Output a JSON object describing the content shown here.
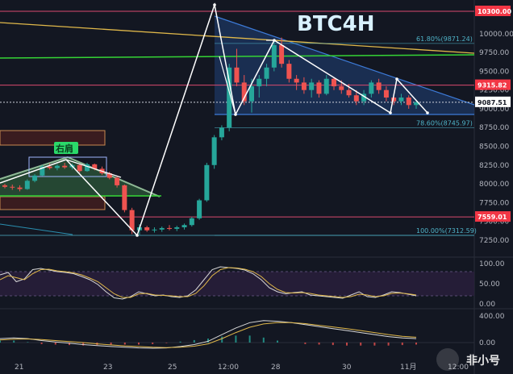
{
  "chart_data": {
    "type": "candlestick",
    "title": "BTC4H",
    "price_axis_ticks": [
      10000,
      9750,
      9500,
      9250,
      9000,
      8750,
      8500,
      8250,
      8000,
      7750,
      7500,
      7250
    ],
    "price_axis_labels": [
      "10000.00",
      "9750.00",
      "9500.00",
      "9250.00",
      "9000.00",
      "8750.00",
      "8500.00",
      "8250.00",
      "8000.00",
      "7750.00",
      "7500.00",
      "7250.00"
    ],
    "ylim": [
      7100,
      10330
    ],
    "x_tick_labels": [
      "21",
      "23",
      "25",
      "12:00",
      "28",
      "30",
      "11月",
      "12:00"
    ],
    "price_tags": [
      {
        "value": 10300.0,
        "text": "10300.00",
        "color": "#f23645"
      },
      {
        "value": 9315.82,
        "text": "9315.82",
        "color": "#f23645"
      },
      {
        "value": 9087.51,
        "text": "9087.51",
        "color": "#ffffff"
      },
      {
        "value": 7559.01,
        "text": "7559.01",
        "color": "#f23645"
      }
    ],
    "fib_levels": [
      {
        "text": "61.80%(9871.24)",
        "value": 9871.24
      },
      {
        "text": "78.60%(8745.97)",
        "value": 8745.97
      },
      {
        "text": "100.00%(7312.59)",
        "value": 7312.59
      }
    ],
    "annotation": "右肩",
    "candles": [
      [
        7980,
        8000,
        7940,
        7960
      ],
      [
        7960,
        7990,
        7920,
        7950
      ],
      [
        7950,
        7980,
        7900,
        7930
      ],
      [
        7930,
        8060,
        7920,
        8040
      ],
      [
        8040,
        8130,
        8020,
        8110
      ],
      [
        8110,
        8250,
        8100,
        8230
      ],
      [
        8230,
        8270,
        8190,
        8210
      ],
      [
        8210,
        8260,
        8180,
        8240
      ],
      [
        8240,
        8280,
        8200,
        8220
      ],
      [
        8220,
        8270,
        8190,
        8250
      ],
      [
        8250,
        8260,
        8150,
        8170
      ],
      [
        8170,
        8280,
        8160,
        8260
      ],
      [
        8260,
        8270,
        8180,
        8200
      ],
      [
        8200,
        8230,
        8120,
        8140
      ],
      [
        8140,
        8160,
        8060,
        8080
      ],
      [
        8080,
        8100,
        7950,
        7980
      ],
      [
        7980,
        7990,
        7620,
        7650
      ],
      [
        7650,
        7680,
        7330,
        7380
      ],
      [
        7380,
        7460,
        7320,
        7420
      ],
      [
        7420,
        7440,
        7360,
        7380
      ],
      [
        7380,
        7420,
        7350,
        7390
      ],
      [
        7390,
        7430,
        7360,
        7410
      ],
      [
        7410,
        7450,
        7380,
        7400
      ],
      [
        7400,
        7440,
        7370,
        7420
      ],
      [
        7420,
        7470,
        7390,
        7450
      ],
      [
        7450,
        7560,
        7430,
        7540
      ],
      [
        7540,
        7800,
        7520,
        7780
      ],
      [
        7780,
        8280,
        7760,
        8250
      ],
      [
        8250,
        8650,
        8200,
        8620
      ],
      [
        8620,
        8780,
        8580,
        8750
      ],
      [
        8750,
        9600,
        8700,
        9550
      ],
      [
        9550,
        9800,
        9300,
        9350
      ],
      [
        9350,
        9450,
        9050,
        9100
      ],
      [
        9100,
        9400,
        8950,
        9300
      ],
      [
        9300,
        9450,
        9150,
        9400
      ],
      [
        9400,
        9600,
        9300,
        9550
      ],
      [
        9550,
        9900,
        9500,
        9850
      ],
      [
        9850,
        9950,
        9550,
        9600
      ],
      [
        9600,
        9650,
        9350,
        9400
      ],
      [
        9400,
        9450,
        9250,
        9350
      ],
      [
        9350,
        9420,
        9200,
        9250
      ],
      [
        9250,
        9400,
        9150,
        9350
      ],
      [
        9350,
        9380,
        9150,
        9200
      ],
      [
        9200,
        9450,
        9180,
        9400
      ],
      [
        9400,
        9420,
        9250,
        9300
      ],
      [
        9300,
        9380,
        9200,
        9250
      ],
      [
        9250,
        9330,
        9150,
        9180
      ],
      [
        9180,
        9250,
        9050,
        9100
      ],
      [
        9100,
        9250,
        9050,
        9200
      ],
      [
        9200,
        9380,
        9150,
        9350
      ],
      [
        9350,
        9400,
        9200,
        9250
      ],
      [
        9250,
        9300,
        9100,
        9150
      ],
      [
        9150,
        9200,
        9050,
        9100
      ],
      [
        9100,
        9200,
        9050,
        9150
      ],
      [
        9150,
        9180,
        9000,
        9050
      ],
      [
        9050,
        9120,
        9000,
        9087
      ]
    ],
    "stoch_axis_labels": [
      "100.00",
      "50.00",
      "0.00"
    ],
    "stoch_k": [
      72,
      78,
      55,
      62,
      85,
      88,
      84,
      80,
      78,
      75,
      68,
      60,
      48,
      30,
      15,
      12,
      18,
      30,
      25,
      20,
      22,
      18,
      16,
      20,
      35,
      60,
      85,
      92,
      90,
      88,
      84,
      75,
      60,
      40,
      30,
      25,
      28,
      30,
      22,
      20,
      18,
      16,
      14,
      22,
      30,
      18,
      16,
      22,
      30,
      28,
      24,
      20
    ],
    "stoch_d": [
      60,
      70,
      65,
      60,
      75,
      85,
      86,
      82,
      80,
      77,
      72,
      64,
      55,
      40,
      25,
      16,
      16,
      25,
      26,
      22,
      21,
      20,
      18,
      18,
      26,
      45,
      70,
      85,
      90,
      89,
      86,
      80,
      68,
      50,
      36,
      28,
      27,
      28,
      26,
      22,
      20,
      18,
      16,
      18,
      24,
      22,
      18,
      20,
      26,
      27,
      25,
      22
    ],
    "macd_axis_labels": [
      "400.00",
      "0.00"
    ],
    "macd_line": [
      60,
      70,
      60,
      30,
      10,
      -10,
      -30,
      -45,
      -60,
      -70,
      -80,
      -85,
      -80,
      -60,
      -30,
      20,
      120,
      220,
      300,
      330,
      320,
      300,
      270,
      240,
      210,
      180,
      150,
      120,
      90,
      70,
      60
    ],
    "macd_signal": [
      40,
      50,
      55,
      45,
      30,
      15,
      0,
      -20,
      -35,
      -50,
      -60,
      -70,
      -75,
      -70,
      -55,
      -20,
      60,
      150,
      230,
      280,
      300,
      300,
      285,
      260,
      235,
      210,
      180,
      150,
      120,
      95,
      80
    ]
  },
  "watermark": "非小号",
  "colors": {
    "up": "#26a69a",
    "down": "#ef5350",
    "bg": "#131722"
  }
}
